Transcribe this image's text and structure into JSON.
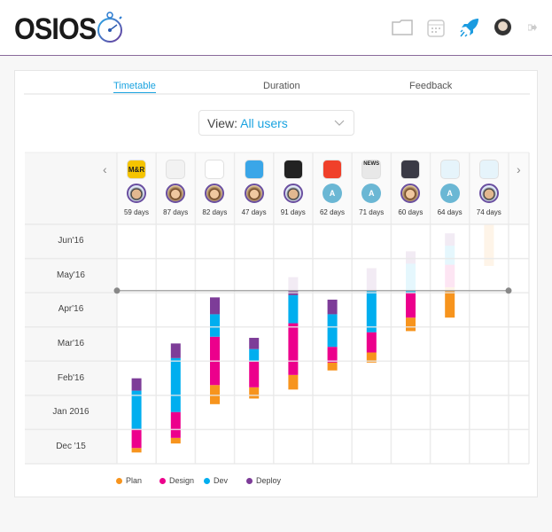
{
  "header": {
    "logo": "OSIOS",
    "icons": [
      "stopwatch-icon",
      "folder-icon",
      "calendar-icon",
      "rocket-icon",
      "user-avatar",
      "logout-icon"
    ]
  },
  "tabs": [
    {
      "label": "Timetable",
      "active": true
    },
    {
      "label": "Duration",
      "active": false
    },
    {
      "label": "Feedback",
      "active": false
    }
  ],
  "view_select": {
    "label": "View:",
    "value": "All users"
  },
  "projects": [
    {
      "app_icon": "mr-app-icon",
      "app_text": "M&R",
      "app_color": "#f5c400",
      "owner": "man",
      "days": "59 days"
    },
    {
      "app_icon": "equalizer-app-icon",
      "app_color": "#f2f2f2",
      "owner": "woman",
      "days": "87 days"
    },
    {
      "app_icon": "swoosh-app-icon",
      "app_color": "#ffffff",
      "owner": "woman",
      "days": "82 days"
    },
    {
      "app_icon": "card-app-icon",
      "app_color": "#3aa6e8",
      "owner": "woman",
      "days": "47 days"
    },
    {
      "app_icon": "portrait-app-icon",
      "app_color": "#222222",
      "owner": "man",
      "days": "91 days"
    },
    {
      "app_icon": "dna-app-icon",
      "app_color": "#f0402a",
      "owner": "A",
      "days": "62 days"
    },
    {
      "app_icon": "news-app-icon",
      "app_text": "NEWS",
      "app_color": "#e8e8e8",
      "owner": "A",
      "days": "71 days"
    },
    {
      "app_icon": "video-app-icon",
      "app_color": "#3a3a45",
      "owner": "woman",
      "days": "60 days"
    },
    {
      "app_icon": "tablet-app-icon",
      "app_color": "#e6f4fb",
      "owner": "A",
      "days": "64 days"
    },
    {
      "app_icon": "watch-app-icon",
      "app_color": "#e6f4fb",
      "owner": "man",
      "days": "74 days"
    }
  ],
  "nav": {
    "prev": "‹",
    "next": "›"
  },
  "chart_data": {
    "type": "bar",
    "orientation": "vertical-gantt",
    "y_axis": {
      "range": [
        "2015-12-01",
        "2016-07-01"
      ],
      "tick_labels": [
        "Jun'16",
        "May'16",
        "Apr'16",
        "Mar'16",
        "Feb'16",
        "Jan 2016",
        "Dec '15"
      ]
    },
    "today": "2016-05-03",
    "grid": true,
    "legend_position": "bottom",
    "phases": [
      {
        "name": "Plan",
        "color": "#f7941d"
      },
      {
        "name": "Design",
        "color": "#ec008c"
      },
      {
        "name": "Dev",
        "color": "#00aeef"
      },
      {
        "name": "Deploy",
        "color": "#7d3c98"
      }
    ],
    "series": [
      [
        [
          "2015-12-11",
          "2015-12-15"
        ],
        [
          "2015-12-15",
          "2016-01-01"
        ],
        [
          "2016-01-01",
          "2016-02-04"
        ],
        [
          "2016-02-04",
          "2016-02-15"
        ]
      ],
      [
        [
          "2015-12-19",
          "2015-12-24"
        ],
        [
          "2015-12-24",
          "2016-01-16"
        ],
        [
          "2016-01-16",
          "2016-03-04"
        ],
        [
          "2016-03-04",
          "2016-03-17"
        ]
      ],
      [
        [
          "2016-01-23",
          "2016-02-09"
        ],
        [
          "2016-02-09",
          "2016-03-23"
        ],
        [
          "2016-03-23",
          "2016-04-12"
        ],
        [
          "2016-04-12",
          "2016-04-27"
        ]
      ],
      [
        [
          "2016-01-28",
          "2016-02-07"
        ],
        [
          "2016-02-07",
          "2016-03-01"
        ],
        [
          "2016-03-01",
          "2016-03-12"
        ],
        [
          "2016-03-12",
          "2016-03-22"
        ]
      ],
      [
        [
          "2016-02-05",
          "2016-02-18"
        ],
        [
          "2016-02-18",
          "2016-04-04"
        ],
        [
          "2016-04-04",
          "2016-04-29"
        ],
        [
          "2016-04-29",
          "2016-05-15"
        ]
      ],
      [
        [
          "2016-02-22",
          "2016-02-29"
        ],
        [
          "2016-02-29",
          "2016-03-14"
        ],
        [
          "2016-03-14",
          "2016-04-12"
        ],
        [
          "2016-04-12",
          "2016-04-25"
        ]
      ],
      [
        [
          "2016-02-29",
          "2016-03-09"
        ],
        [
          "2016-03-09",
          "2016-03-27"
        ],
        [
          "2016-03-27",
          "2016-05-03"
        ],
        [
          "2016-05-03",
          "2016-05-23"
        ]
      ],
      [
        [
          "2016-03-28",
          "2016-04-09"
        ],
        [
          "2016-04-09",
          "2016-05-01"
        ],
        [
          "2016-05-01",
          "2016-05-27"
        ],
        [
          "2016-05-27",
          "2016-06-07"
        ]
      ],
      [
        [
          "2016-04-09",
          "2016-05-06"
        ],
        [
          "2016-05-06",
          "2016-05-26"
        ],
        [
          "2016-05-26",
          "2016-06-12"
        ],
        [
          "2016-06-12",
          "2016-06-23"
        ]
      ],
      [
        [
          "2016-05-25",
          "2016-07-01"
        ],
        null,
        null,
        null
      ]
    ]
  }
}
